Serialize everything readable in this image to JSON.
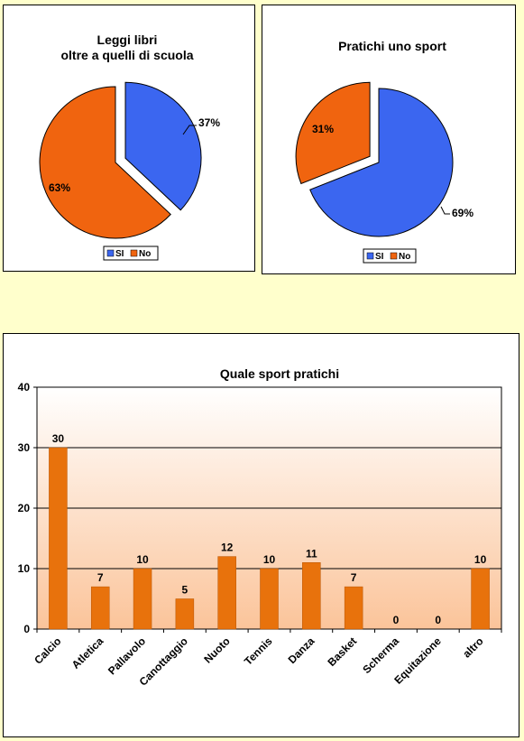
{
  "colors": {
    "si": "#3b66f0",
    "no": "#f0640f",
    "bar": "#e8720c",
    "bar_edge": "#b85400"
  },
  "chart_data": [
    {
      "type": "pie",
      "title_lines": [
        "Leggi libri",
        "oltre a quelli di scuola"
      ],
      "slices": [
        {
          "name": "SI",
          "value": 37,
          "label": "37%"
        },
        {
          "name": "No",
          "value": 63,
          "label": "63%"
        }
      ],
      "legend": [
        "SI",
        "No"
      ],
      "legend_position": "bottom"
    },
    {
      "type": "pie",
      "title_lines": [
        "Pratichi uno sport"
      ],
      "slices": [
        {
          "name": "SI",
          "value": 69,
          "label": "69%"
        },
        {
          "name": "No",
          "value": 31,
          "label": "31%"
        }
      ],
      "legend": [
        "SI",
        "No"
      ],
      "legend_position": "bottom"
    },
    {
      "type": "bar",
      "title": "Quale sport pratichi",
      "categories": [
        "Calcio",
        "Atletica",
        "Pallavolo",
        "Canottaggio",
        "Nuoto",
        "Tennis",
        "Danza",
        "Basket",
        "Scherma",
        "Equitazione",
        "altro"
      ],
      "values": [
        30,
        7,
        10,
        5,
        12,
        10,
        11,
        7,
        0,
        0,
        10
      ],
      "ylim": [
        0,
        40
      ],
      "yticks": [
        0,
        10,
        20,
        30,
        40
      ],
      "grid": true
    }
  ]
}
